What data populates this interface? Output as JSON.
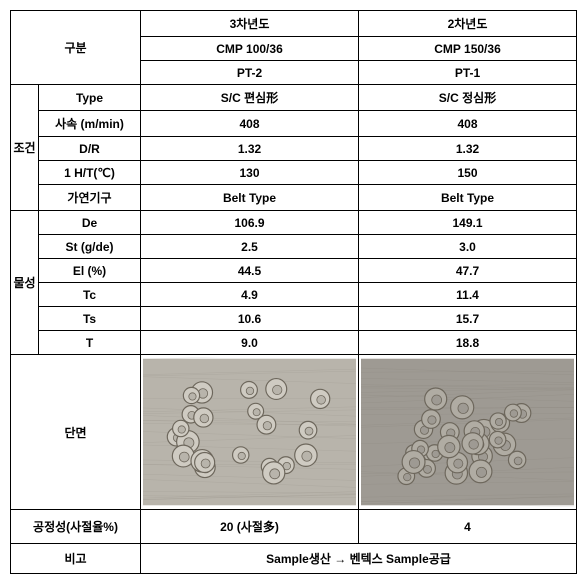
{
  "header": {
    "gubun": "구분",
    "year3": "3차년도",
    "year2": "2차년도",
    "cmp3": "CMP 100/36",
    "cmp2": "CMP 150/36",
    "pt3": "PT-2",
    "pt2": "PT-1"
  },
  "cond": {
    "group": "조건",
    "rows": [
      {
        "label": "Type",
        "v1": "S/C 편심形",
        "v2": "S/C 정심形"
      },
      {
        "label": "사속 (m/min)",
        "v1": "408",
        "v2": "408"
      },
      {
        "label": "D/R",
        "v1": "1.32",
        "v2": "1.32"
      },
      {
        "label": "1 H/T(℃)",
        "v1": "130",
        "v2": "150"
      },
      {
        "label": "가연기구",
        "v1": "Belt Type",
        "v2": "Belt Type"
      }
    ]
  },
  "phys": {
    "group": "물성",
    "rows": [
      {
        "label": "De",
        "v1": "106.9",
        "v2": "149.1"
      },
      {
        "label": "St (g/de)",
        "v1": "2.5",
        "v2": "3.0"
      },
      {
        "label": "El (%)",
        "v1": "44.5",
        "v2": "47.7"
      },
      {
        "label": "Tc",
        "v1": "4.9",
        "v2": "11.4"
      },
      {
        "label": "Ts",
        "v1": "10.6",
        "v2": "15.7"
      },
      {
        "label": "T",
        "v1": "9.0",
        "v2": "18.8"
      }
    ]
  },
  "section": {
    "label": "단면",
    "img1_bg": "#b8b4ab",
    "img2_bg": "#9e9a93",
    "ring_stroke": "#6d675c",
    "ring_fill": "#cfcbc2",
    "ring_fill2": "#b0aca3"
  },
  "process": {
    "label": "공정성(사절율%)",
    "v1": "20 (사절多)",
    "v2": "4"
  },
  "note": {
    "label": "비고",
    "text": "Sample생산 → 벤텍스 Sample공급"
  }
}
